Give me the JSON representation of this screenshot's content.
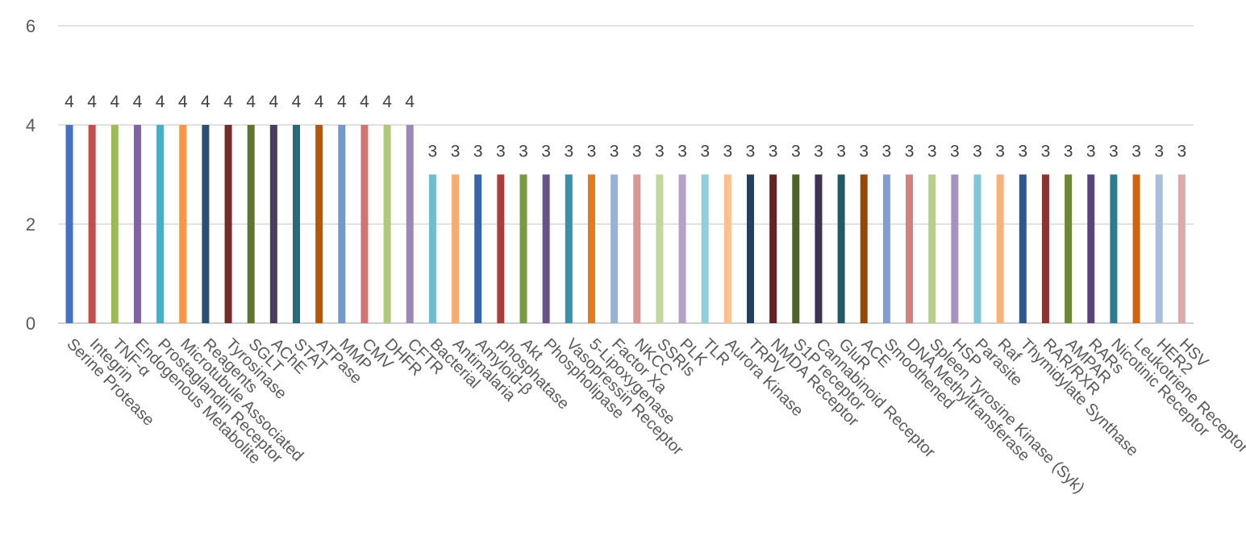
{
  "chart_data": {
    "type": "bar",
    "title": "",
    "xlabel": "",
    "ylabel": "",
    "ylim": [
      0,
      6
    ],
    "yticks": [
      0,
      2,
      4,
      6
    ],
    "grid": true,
    "data_labels": true,
    "categories": [
      "Serine Protease",
      "Integrin",
      "TNF-α",
      "Endogenous Metabolite",
      "Prostaglandin Receptor",
      "Microtubule Associated",
      "Reagents",
      "Tyrosinase",
      "SGLT",
      "AChE",
      "STAT",
      "ATPase",
      "MMP",
      "CMV",
      "DHFR",
      "CFTR",
      "Bacterial",
      "Antimalaria",
      "Amyloid-β",
      "phosphatase",
      "Akt",
      "Phospholipase",
      "Vasopressin Receptor",
      "5-Lipoxygenase",
      "Factor Xa",
      "NKCC",
      "SSRIs",
      "PLK",
      "TLR",
      "Aurora Kinase",
      "TRPV",
      "NMDA Receptor",
      "S1P receptor",
      "Cannabinoid Receptor",
      "GluR",
      "ACE",
      "Smoothened",
      "DNA Methyltransferase",
      "Spleen Tyrosine Kinase (Syk)",
      "HSP",
      "Parasite",
      "Raf",
      "Thymidylate Synthase",
      "RAR/RXR",
      "AMPAR",
      "RARs",
      "Nicotinic Receptor",
      "Leukotriene Receptor",
      "HER2",
      "HSV"
    ],
    "values": [
      4,
      4,
      4,
      4,
      4,
      4,
      4,
      4,
      4,
      4,
      4,
      4,
      4,
      4,
      4,
      4,
      3,
      3,
      3,
      3,
      3,
      3,
      3,
      3,
      3,
      3,
      3,
      3,
      3,
      3,
      3,
      3,
      3,
      3,
      3,
      3,
      3,
      3,
      3,
      3,
      3,
      3,
      3,
      3,
      3,
      3,
      3,
      3,
      3,
      3
    ],
    "colors": [
      "#4472c4",
      "#c0504d",
      "#9bbb59",
      "#8064a2",
      "#4bacc6",
      "#f79646",
      "#2c4d75",
      "#772c2a",
      "#5f7530",
      "#4d3b62",
      "#276a7c",
      "#b65708",
      "#729aca",
      "#d07573",
      "#afc97a",
      "#9b88b5",
      "#6fbdd1",
      "#f9ac6f",
      "#3a64a3",
      "#a63f3d",
      "#7a9a42",
      "#65538a",
      "#3791a8",
      "#e37b1d",
      "#95b3d7",
      "#d99694",
      "#c3d69b",
      "#b2a2c7",
      "#92cddc",
      "#fac090",
      "#253f60",
      "#632523",
      "#4f6228",
      "#3f3151",
      "#215968",
      "#974806",
      "#7f9fcf",
      "#d4807e",
      "#b8cf8a",
      "#a493be",
      "#80c6d7",
      "#f8b37d",
      "#2f568d",
      "#8b3432",
      "#6c8836",
      "#594579",
      "#2e7a8f",
      "#d2630c",
      "#a5bfdd",
      "#ddaaa8"
    ]
  }
}
